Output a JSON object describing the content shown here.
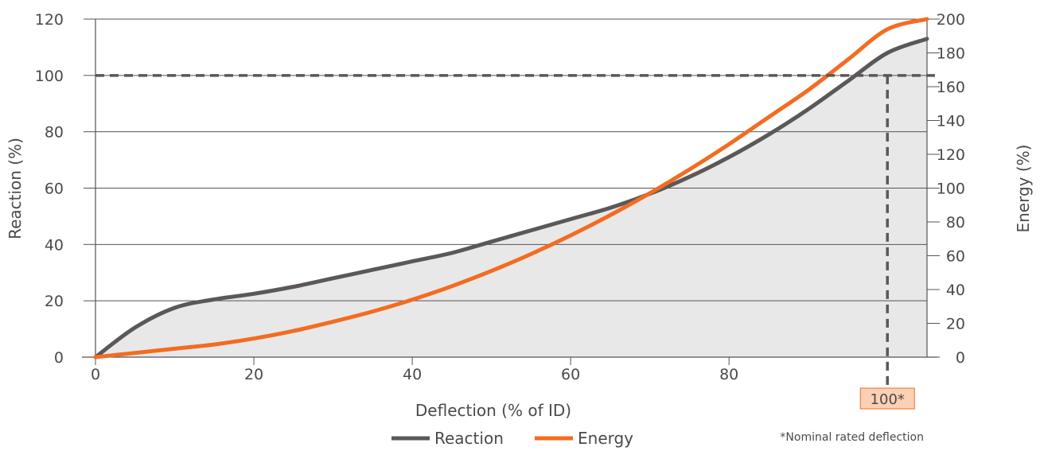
{
  "chart_data": {
    "type": "line",
    "x": [
      0,
      5,
      10,
      15,
      20,
      25,
      30,
      35,
      40,
      45,
      50,
      55,
      60,
      65,
      70,
      75,
      80,
      85,
      90,
      95,
      100,
      105
    ],
    "xlabel": "Deflection (% of ID)",
    "ylabel": "Reaction (%)",
    "y2label": "Energy (%)",
    "xlim": [
      0,
      105
    ],
    "ylim": [
      0,
      120
    ],
    "y2lim": [
      0,
      200
    ],
    "xticks": [
      "0",
      "20",
      "40",
      "60",
      "80"
    ],
    "xtick_values": [
      0,
      20,
      40,
      60,
      80
    ],
    "yticks": [
      "0",
      "20",
      "40",
      "60",
      "80",
      "100",
      "120"
    ],
    "ytick_values": [
      0,
      20,
      40,
      60,
      80,
      100,
      120
    ],
    "y2ticks": [
      "0",
      "20",
      "40",
      "60",
      "80",
      "100",
      "120",
      "140",
      "160",
      "180",
      "200"
    ],
    "y2tick_values": [
      0,
      20,
      40,
      60,
      80,
      100,
      120,
      140,
      160,
      180,
      200
    ],
    "grid": "horizontal",
    "series": [
      {
        "name": "Reaction",
        "axis": "left",
        "color": "#5b5857",
        "fill": "#e8e8e8",
        "values": [
          0,
          10.5,
          17.5,
          20.5,
          22.5,
          25,
          28,
          31,
          34,
          37,
          41,
          45,
          49,
          53,
          58,
          64,
          71,
          79,
          88,
          98,
          108,
          113
        ]
      },
      {
        "name": "Energy",
        "axis": "right",
        "color": "#f36c21",
        "values": [
          0,
          2.5,
          5,
          7.5,
          11,
          15.5,
          21,
          27,
          34,
          42,
          51,
          61,
          72,
          84,
          97,
          111,
          126,
          142,
          158,
          176,
          194,
          200
        ]
      }
    ],
    "reference": {
      "x": 100,
      "y": 100,
      "label": "100*",
      "label_bg": "#fbd0b5",
      "label_border": "#f36c21"
    },
    "note": "*Nominal rated deflection",
    "legend": "bottom-center"
  }
}
